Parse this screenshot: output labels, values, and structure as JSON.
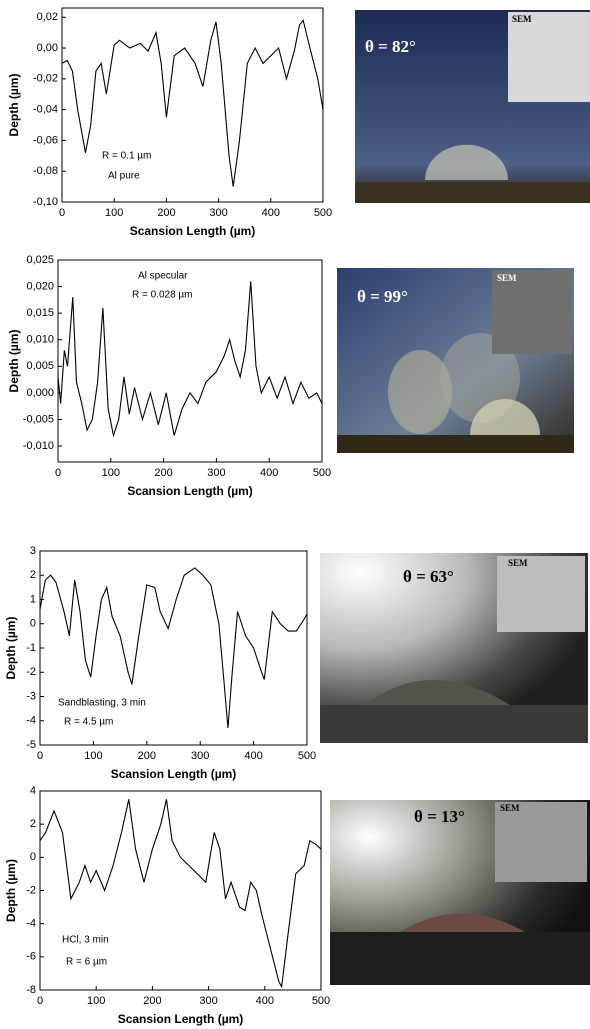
{
  "chart_data": [
    {
      "type": "line",
      "xlabel": "Scansion Length (µm)",
      "ylabel": "Depth (µm)",
      "color": "#000000",
      "annotations": [
        "R = 0.1 µm",
        "Al pure"
      ],
      "xlim": [
        0,
        500
      ],
      "xticks": [
        0,
        100,
        200,
        300,
        400,
        500
      ],
      "ylim": [
        -0.1,
        0.026
      ],
      "yticks": [
        {
          "value": 0.02,
          "label": "0,02"
        },
        {
          "value": 0,
          "label": "0,00"
        },
        {
          "value": -0.02,
          "label": "-0,02"
        },
        {
          "value": -0.04,
          "label": "-0,04"
        },
        {
          "value": -0.06,
          "label": "-0,06"
        },
        {
          "value": -0.08,
          "label": "-0,08"
        },
        {
          "value": -0.1,
          "label": "-0,10"
        }
      ],
      "x": [
        0,
        10,
        20,
        30,
        45,
        55,
        65,
        75,
        85,
        100,
        110,
        130,
        150,
        165,
        180,
        190,
        200,
        215,
        235,
        255,
        270,
        285,
        295,
        305,
        320,
        328,
        340,
        355,
        370,
        385,
        400,
        415,
        430,
        445,
        455,
        462,
        475,
        490,
        500
      ],
      "values": [
        -0.01,
        -0.008,
        -0.015,
        -0.04,
        -0.068,
        -0.05,
        -0.015,
        -0.01,
        -0.03,
        0.002,
        0.005,
        0,
        0.003,
        -0.002,
        0.01,
        -0.01,
        -0.045,
        -0.005,
        0,
        -0.01,
        -0.025,
        0.005,
        0.017,
        -0.01,
        -0.07,
        -0.09,
        -0.06,
        -0.01,
        0,
        -0.01,
        -0.005,
        0,
        -0.02,
        -0.002,
        0.015,
        0.018,
        0,
        -0.02,
        -0.04
      ]
    },
    {
      "type": "line",
      "xlabel": "Scansion Length (µm)",
      "ylabel": "Depth (µm)",
      "color": "#000000",
      "annotations": [
        "Al specular",
        "R = 0.028 µm"
      ],
      "xlim": [
        0,
        500
      ],
      "xticks": [
        0,
        100,
        200,
        300,
        400,
        500
      ],
      "ylim": [
        -0.013,
        0.025
      ],
      "yticks": [
        {
          "value": 0.025,
          "label": "0,025"
        },
        {
          "value": 0.02,
          "label": "0,020"
        },
        {
          "value": 0.015,
          "label": "0,015"
        },
        {
          "value": 0.01,
          "label": "0,010"
        },
        {
          "value": 0.005,
          "label": "0,005"
        },
        {
          "value": 0,
          "label": "0,000"
        },
        {
          "value": -0.005,
          "label": "-0,005"
        },
        {
          "value": -0.01,
          "label": "-0,010"
        }
      ],
      "x": [
        0,
        5,
        12,
        18,
        28,
        35,
        45,
        55,
        65,
        75,
        85,
        95,
        105,
        115,
        125,
        135,
        145,
        160,
        175,
        190,
        205,
        220,
        235,
        250,
        265,
        280,
        300,
        315,
        325,
        335,
        345,
        355,
        365,
        375,
        385,
        400,
        415,
        430,
        445,
        460,
        475,
        490,
        500
      ],
      "values": [
        0.003,
        -0.002,
        0.008,
        0.005,
        0.018,
        0.002,
        -0.002,
        -0.007,
        -0.005,
        0.002,
        0.016,
        -0.003,
        -0.008,
        -0.005,
        0.003,
        -0.004,
        0.001,
        -0.005,
        0,
        -0.006,
        0,
        -0.008,
        -0.003,
        0,
        -0.002,
        0.002,
        0.004,
        0.007,
        0.01,
        0.006,
        0.003,
        0.008,
        0.021,
        0.005,
        0,
        0.003,
        -0.001,
        0.003,
        -0.002,
        0.002,
        -0.001,
        0,
        -0.002
      ]
    },
    {
      "type": "line",
      "xlabel": "Scansion Length (µm)",
      "ylabel": "Depth (µm)",
      "color": "#000000",
      "annotations": [
        "Sandblasting, 3 min",
        "R = 4.5 µm"
      ],
      "xlim": [
        0,
        500
      ],
      "xticks": [
        0,
        100,
        200,
        300,
        400,
        500
      ],
      "ylim": [
        -5,
        3
      ],
      "yticks": [
        3,
        2,
        1,
        0,
        -1,
        -2,
        -3,
        -4,
        -5
      ],
      "x": [
        0,
        10,
        20,
        30,
        45,
        55,
        65,
        75,
        85,
        95,
        105,
        115,
        125,
        135,
        150,
        165,
        172,
        185,
        200,
        215,
        225,
        240,
        255,
        270,
        290,
        305,
        320,
        335,
        345,
        352,
        360,
        370,
        385,
        400,
        415,
        420,
        435,
        450,
        465,
        480,
        495,
        500
      ],
      "values": [
        0.6,
        1.8,
        2.0,
        1.7,
        0.5,
        -0.5,
        1.8,
        0.5,
        -1.5,
        -2.2,
        -0.5,
        1.0,
        1.5,
        0.3,
        -0.5,
        -2.0,
        -2.5,
        -0.5,
        1.6,
        1.5,
        0.5,
        -0.2,
        1.0,
        2.0,
        2.3,
        2.0,
        1.6,
        0.0,
        -2.5,
        -4.3,
        -2.0,
        0.5,
        -0.5,
        -1.0,
        -2.0,
        -2.3,
        0.5,
        0.0,
        -0.3,
        -0.3,
        0.2,
        0.4
      ]
    },
    {
      "type": "line",
      "xlabel": "Scansion Length (µm)",
      "ylabel": "Depth (µm)",
      "color": "#000000",
      "annotations": [
        "HCl, 3 min",
        "R = 6 µm"
      ],
      "xlim": [
        0,
        500
      ],
      "xticks": [
        0,
        100,
        200,
        300,
        400,
        500
      ],
      "ylim": [
        -8,
        4
      ],
      "yticks": [
        4,
        2,
        0,
        -2,
        -4,
        -6,
        -8
      ],
      "x": [
        0,
        10,
        25,
        40,
        55,
        70,
        80,
        90,
        100,
        115,
        130,
        145,
        158,
        170,
        185,
        200,
        215,
        225,
        235,
        250,
        265,
        280,
        295,
        310,
        320,
        330,
        340,
        355,
        365,
        375,
        385,
        395,
        410,
        425,
        430,
        440,
        455,
        470,
        480,
        490,
        500
      ],
      "values": [
        1.0,
        1.5,
        2.8,
        1.5,
        -2.5,
        -1.5,
        -0.5,
        -1.5,
        -0.8,
        -2.0,
        -0.5,
        1.5,
        3.5,
        0.5,
        -1.5,
        0.5,
        2.0,
        3.5,
        1.0,
        0.0,
        -0.5,
        -1.0,
        -1.5,
        1.5,
        0.5,
        -2.5,
        -1.5,
        -3.0,
        -3.2,
        -1.5,
        -2.0,
        -3.5,
        -5.5,
        -7.5,
        -7.8,
        -5.0,
        -1.0,
        -0.5,
        1.0,
        0.8,
        0.5
      ]
    }
  ],
  "photos": [
    {
      "angle": "θ = 82°",
      "inset": "SEM"
    },
    {
      "angle": "θ = 99°",
      "inset": "SEM"
    },
    {
      "angle": "θ = 63°",
      "inset": "SEM"
    },
    {
      "angle": "θ = 13°",
      "inset": "SEM"
    }
  ]
}
